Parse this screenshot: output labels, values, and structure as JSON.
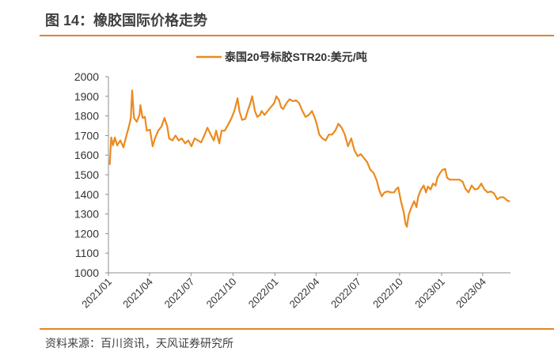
{
  "figure": {
    "title": "图 14：橡胶国际价格走势",
    "source": "资料来源：百川资讯，天风证券研究所"
  },
  "colors": {
    "line": "#ec8a1f",
    "rule": "#e0852a",
    "axis": "#8f8f8f",
    "text": "#333333"
  },
  "chart_data": {
    "type": "line",
    "title": "",
    "xlabel": "",
    "ylabel": "",
    "ylim": [
      1000,
      2000
    ],
    "yticks": [
      1000,
      1100,
      1200,
      1300,
      1400,
      1500,
      1600,
      1700,
      1800,
      1900,
      2000
    ],
    "xlim": [
      "2021-01-01",
      "2023-06-01"
    ],
    "xticks": [
      {
        "date": "2021-01-01",
        "label": "2021/01"
      },
      {
        "date": "2021-04-01",
        "label": "2021/04"
      },
      {
        "date": "2021-07-01",
        "label": "2021/07"
      },
      {
        "date": "2021-10-01",
        "label": "2021/10"
      },
      {
        "date": "2022-01-01",
        "label": "2022/01"
      },
      {
        "date": "2022-04-01",
        "label": "2022/04"
      },
      {
        "date": "2022-07-01",
        "label": "2022/07"
      },
      {
        "date": "2022-10-01",
        "label": "2022/10"
      },
      {
        "date": "2023-01-01",
        "label": "2023/01"
      },
      {
        "date": "2023-04-01",
        "label": "2023/04"
      }
    ],
    "grid": false,
    "legend": "top-center",
    "series": [
      {
        "name": "泰国20号标胶STR20:美元/吨",
        "x": [
          "2021-01-04",
          "2021-01-07",
          "2021-01-11",
          "2021-01-15",
          "2021-01-20",
          "2021-01-27",
          "2021-02-03",
          "2021-02-10",
          "2021-02-15",
          "2021-02-19",
          "2021-02-22",
          "2021-02-26",
          "2021-03-04",
          "2021-03-10",
          "2021-03-12",
          "2021-03-17",
          "2021-03-22",
          "2021-03-26",
          "2021-04-02",
          "2021-04-08",
          "2021-04-13",
          "2021-04-20",
          "2021-04-27",
          "2021-05-04",
          "2021-05-10",
          "2021-05-14",
          "2021-05-21",
          "2021-05-28",
          "2021-06-04",
          "2021-06-11",
          "2021-06-18",
          "2021-06-25",
          "2021-07-02",
          "2021-07-09",
          "2021-07-16",
          "2021-07-23",
          "2021-07-30",
          "2021-08-06",
          "2021-08-13",
          "2021-08-20",
          "2021-08-25",
          "2021-09-01",
          "2021-09-06",
          "2021-09-13",
          "2021-09-20",
          "2021-09-27",
          "2021-10-04",
          "2021-10-11",
          "2021-10-15",
          "2021-10-21",
          "2021-10-28",
          "2021-11-02",
          "2021-11-08",
          "2021-11-12",
          "2021-11-18",
          "2021-11-23",
          "2021-11-29",
          "2021-12-03",
          "2021-12-09",
          "2021-12-16",
          "2021-12-23",
          "2021-12-30",
          "2022-01-04",
          "2022-01-10",
          "2022-01-14",
          "2022-01-19",
          "2022-01-26",
          "2022-02-02",
          "2022-02-09",
          "2022-02-16",
          "2022-02-23",
          "2022-03-02",
          "2022-03-09",
          "2022-03-16",
          "2022-03-23",
          "2022-03-30",
          "2022-04-04",
          "2022-04-08",
          "2022-04-15",
          "2022-04-22",
          "2022-04-29",
          "2022-05-06",
          "2022-05-13",
          "2022-05-20",
          "2022-05-27",
          "2022-06-03",
          "2022-06-10",
          "2022-06-17",
          "2022-06-24",
          "2022-07-01",
          "2022-07-08",
          "2022-07-15",
          "2022-07-22",
          "2022-07-29",
          "2022-08-05",
          "2022-08-12",
          "2022-08-17",
          "2022-08-23",
          "2022-08-29",
          "2022-09-05",
          "2022-09-12",
          "2022-09-19",
          "2022-09-23",
          "2022-09-28",
          "2022-10-04",
          "2022-10-10",
          "2022-10-14",
          "2022-10-17",
          "2022-10-21",
          "2022-10-27",
          "2022-11-02",
          "2022-11-07",
          "2022-11-11",
          "2022-11-17",
          "2022-11-23",
          "2022-11-28",
          "2022-12-02",
          "2022-12-08",
          "2022-12-13",
          "2022-12-19",
          "2022-12-23",
          "2022-12-29",
          "2023-01-03",
          "2023-01-09",
          "2023-01-13",
          "2023-01-19",
          "2023-01-26",
          "2023-02-02",
          "2023-02-09",
          "2023-02-16",
          "2023-02-22",
          "2023-03-01",
          "2023-03-08",
          "2023-03-15",
          "2023-03-22",
          "2023-03-29",
          "2023-04-05",
          "2023-04-12",
          "2023-04-19",
          "2023-04-26",
          "2023-05-03",
          "2023-05-10",
          "2023-05-17",
          "2023-05-24",
          "2023-05-29"
        ],
        "y": [
          1555,
          1690,
          1650,
          1690,
          1650,
          1675,
          1640,
          1705,
          1745,
          1790,
          1930,
          1790,
          1770,
          1805,
          1855,
          1790,
          1795,
          1725,
          1730,
          1645,
          1685,
          1725,
          1745,
          1790,
          1745,
          1685,
          1675,
          1700,
          1675,
          1685,
          1660,
          1675,
          1645,
          1685,
          1675,
          1665,
          1700,
          1740,
          1705,
          1675,
          1725,
          1660,
          1725,
          1725,
          1755,
          1785,
          1825,
          1890,
          1825,
          1780,
          1785,
          1825,
          1865,
          1900,
          1825,
          1795,
          1805,
          1825,
          1805,
          1825,
          1845,
          1865,
          1900,
          1880,
          1845,
          1835,
          1865,
          1885,
          1875,
          1880,
          1865,
          1825,
          1795,
          1805,
          1825,
          1785,
          1745,
          1705,
          1685,
          1675,
          1705,
          1705,
          1725,
          1760,
          1740,
          1705,
          1645,
          1685,
          1625,
          1595,
          1605,
          1585,
          1565,
          1525,
          1510,
          1470,
          1425,
          1390,
          1410,
          1415,
          1410,
          1410,
          1425,
          1435,
          1365,
          1310,
          1250,
          1235,
          1295,
          1335,
          1365,
          1335,
          1390,
          1425,
          1445,
          1410,
          1440,
          1425,
          1455,
          1445,
          1485,
          1510,
          1525,
          1530,
          1485,
          1475,
          1475,
          1475,
          1475,
          1465,
          1430,
          1410,
          1445,
          1425,
          1430,
          1455,
          1425,
          1410,
          1415,
          1405,
          1375,
          1385,
          1385,
          1370,
          1365
        ]
      }
    ]
  }
}
